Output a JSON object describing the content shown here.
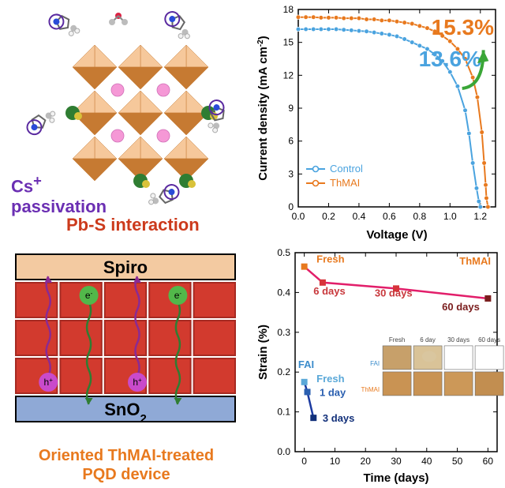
{
  "panel_schematic": {
    "label_cs": "Cs",
    "label_cs_sup": "+",
    "label_passivation": "passivation",
    "label_pbs": "Pb-S interaction",
    "colors": {
      "cs_text": "#6b2fb3",
      "pbs_text": "#cc3a1c",
      "octa_light": "#f6c89b",
      "octa_dark": "#c67a32",
      "sphere_pink": "#f598d6",
      "sphere_green": "#2f7d32",
      "sphere_yellow": "#d9c23a",
      "sphere_blue": "#2a4bd8",
      "sphere_gray": "#bcbcbc",
      "sphere_white": "#f2f2f2",
      "ring": "#5a2aa0",
      "background": "#ffffff"
    },
    "cs_text_fontsize": 22,
    "pbs_text_fontsize": 22
  },
  "chart_jv": {
    "type": "line",
    "title_highlight_orange": "15.3%",
    "title_highlight_blue": "13.6%",
    "xlabel": "Voltage (V)",
    "ylabel": "Current density (mA cm",
    "ylabel_sup": "-2",
    "ylabel_close": ")",
    "label_fontsize": 15,
    "tick_fontsize": 12,
    "highlight_fontsize": 28,
    "xlim": [
      0.0,
      1.3
    ],
    "ylim": [
      0,
      18
    ],
    "xtick_step": 0.2,
    "ytick_step": 3,
    "series": [
      {
        "name": "Control",
        "color": "#4aa3df",
        "marker": "circle",
        "x": [
          0.0,
          0.05,
          0.1,
          0.15,
          0.2,
          0.25,
          0.3,
          0.35,
          0.4,
          0.45,
          0.5,
          0.55,
          0.6,
          0.65,
          0.7,
          0.75,
          0.8,
          0.85,
          0.9,
          0.95,
          1.0,
          1.05,
          1.1,
          1.125,
          1.15,
          1.175,
          1.19,
          1.2
        ],
        "y": [
          16.2,
          16.2,
          16.2,
          16.2,
          16.2,
          16.2,
          16.15,
          16.1,
          16.05,
          16.0,
          15.9,
          15.8,
          15.7,
          15.55,
          15.3,
          15.0,
          14.7,
          14.4,
          13.9,
          13.3,
          12.3,
          11.0,
          8.8,
          6.7,
          4.0,
          1.7,
          0.5,
          0
        ]
      },
      {
        "name": "ThMAI",
        "color": "#e8791e",
        "marker": "circle",
        "x": [
          0.0,
          0.05,
          0.1,
          0.15,
          0.2,
          0.25,
          0.3,
          0.35,
          0.4,
          0.45,
          0.5,
          0.55,
          0.6,
          0.65,
          0.7,
          0.75,
          0.8,
          0.85,
          0.9,
          0.95,
          1.0,
          1.05,
          1.1,
          1.15,
          1.18,
          1.21,
          1.225,
          1.235,
          1.24,
          1.25
        ],
        "y": [
          17.3,
          17.3,
          17.3,
          17.25,
          17.25,
          17.25,
          17.2,
          17.2,
          17.2,
          17.1,
          17.1,
          17.0,
          17.0,
          16.9,
          16.8,
          16.7,
          16.5,
          16.3,
          16.0,
          15.6,
          15.1,
          14.4,
          13.5,
          11.8,
          10.0,
          6.8,
          4.0,
          2.0,
          0.8,
          0
        ]
      }
    ],
    "legend_items": [
      "Control",
      "ThMAI"
    ],
    "arrow_color": "#3aa637",
    "background_color": "#ffffff",
    "axis_color": "#000000"
  },
  "panel_device": {
    "label_spiro": "Spiro",
    "label_sno2": "SnO",
    "label_sno2_sub": "2",
    "caption_line1": "Oriented ThMAI-treated",
    "caption_line2": "PQD device",
    "label_e": "e",
    "label_e_sup": "-",
    "label_h": "h",
    "label_h_sup": "+",
    "colors": {
      "spiro_band": "#f3caa1",
      "sno2_band": "#8fa9d6",
      "block_fill": "#d23a2e",
      "block_stroke": "#a62a22",
      "e_circle": "#52b84a",
      "h_circle": "#c94acb",
      "arrow_e": "#2f7d32",
      "arrow_h": "#8a2a94",
      "caption": "#e8791e",
      "border": "#000000",
      "text": "#000000"
    },
    "band_fontsize": 22,
    "caption_fontsize": 20,
    "eh_fontsize": 12
  },
  "chart_strain": {
    "type": "line",
    "xlabel": "Time (days)",
    "ylabel": "Strain (%)",
    "label_fontsize": 15,
    "tick_fontsize": 12,
    "ann_fontsize": 13,
    "xlim": [
      -3,
      63
    ],
    "ylim": [
      0.0,
      0.5
    ],
    "xtick_step": 10,
    "ytick_step": 0.1,
    "xticks_start": 0,
    "series": [
      {
        "name": "ThMAI",
        "color": "#e21e6a",
        "marker": "square",
        "x": [
          0,
          6,
          30,
          60
        ],
        "y": [
          0.465,
          0.425,
          0.41,
          0.385
        ],
        "marker_colors": [
          "#e8791e",
          "#d7343a",
          "#d7343a",
          "#7a1d1d"
        ]
      },
      {
        "name": "FAI",
        "color": "#1b3aa0",
        "marker": "square",
        "x": [
          0,
          1,
          3
        ],
        "y": [
          0.175,
          0.15,
          0.085
        ],
        "marker_colors": [
          "#5aa8d8",
          "#2a5fb0",
          "#12307a"
        ]
      }
    ],
    "annotations": {
      "thmai_label": "ThMAI",
      "thmai_color": "#e8791e",
      "fai_label": "FAI",
      "fai_color": "#3b8ccb",
      "fresh": "Fresh",
      "d6": "6 days",
      "d30": "30 days",
      "d60": "60 days",
      "d1": "1 day",
      "d3": "3 days"
    },
    "inset": {
      "col_labels": [
        "Fresh",
        "6 day",
        "30 days",
        "60 days"
      ],
      "rows": [
        "FAI",
        "ThMAI"
      ],
      "row_label_color_fai": "#3b8ccb",
      "row_label_color_thmai": "#e8791e",
      "label_fontsize": 8,
      "tiles": {
        "fai": [
          "#c7a06a",
          "#d9c398",
          "#ffffff",
          "#ffffff"
        ],
        "thmai": [
          "#c99353",
          "#c99353",
          "#cc9858",
          "#c28e50"
        ]
      },
      "fai_spot": "#d8c6a0",
      "border": "#666666"
    },
    "axis_color": "#000000",
    "background_color": "#ffffff"
  }
}
